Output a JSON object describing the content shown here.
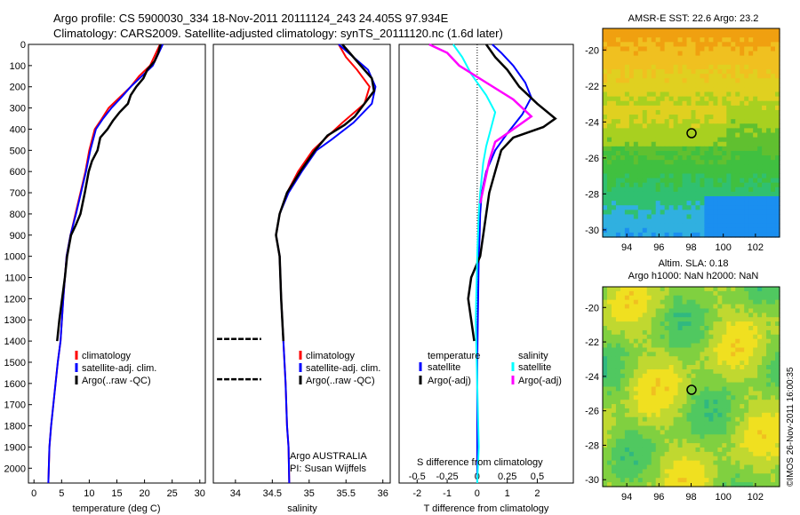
{
  "header": {
    "title_line1": "Argo profile: CS 5900030_334 18-Nov-2011 20111124_243 24.405S 97.934E",
    "title_line2": "Climatology: CARS2009. Satellite-adjusted climatology: synTS_20111120.nc (1.6d later)"
  },
  "colors": {
    "climatology": "#ff0000",
    "satellite": "#0000ff",
    "argo": "#000000",
    "salinity_satellite": "#00ffff",
    "salinity_argo": "#ff00ff"
  },
  "chart_data": [
    {
      "type": "line",
      "name": "temperature-profile",
      "xlabel": "temperature (deg C)",
      "ylabel": "",
      "xlim": [
        -1,
        31
      ],
      "ylim": [
        2070,
        0
      ],
      "xticks": [
        0,
        5,
        10,
        15,
        20,
        25,
        30
      ],
      "yticks": [
        0,
        100,
        200,
        300,
        400,
        500,
        600,
        700,
        800,
        900,
        1000,
        1100,
        1200,
        1300,
        1400,
        1500,
        1600,
        1700,
        1800,
        1900,
        2000
      ],
      "legend": [
        "climatology",
        "satellite-adj. clim.",
        "Argo(..raw -QC)"
      ],
      "series": [
        {
          "key": "climatology",
          "x": [
            22.8,
            21,
            19,
            17.5,
            15.5,
            13.5,
            12.3,
            11,
            10,
            9.3,
            8.4,
            7.5,
            6.6,
            5.9,
            5.3,
            4.8,
            4.3,
            3.9,
            3.5,
            3.1,
            2.8,
            2.6
          ],
          "y": [
            0,
            100,
            150,
            200,
            250,
            300,
            350,
            400,
            500,
            600,
            700,
            800,
            900,
            1000,
            1200,
            1400,
            1500,
            1600,
            1700,
            1800,
            1900,
            2070
          ]
        },
        {
          "key": "satellite",
          "x": [
            23.3,
            21.5,
            19.5,
            17.5,
            15.8,
            14,
            12.5,
            11.2,
            10.2,
            9.4,
            8.5,
            7.6,
            6.6,
            5.9,
            5.3,
            4.8,
            4.3,
            3.9,
            3.5,
            3.1,
            2.8,
            2.6
          ],
          "y": [
            0,
            100,
            150,
            200,
            250,
            300,
            350,
            400,
            500,
            600,
            700,
            800,
            900,
            1000,
            1200,
            1400,
            1500,
            1600,
            1700,
            1800,
            1900,
            2070
          ]
        },
        {
          "key": "argo",
          "x": [
            22.9,
            22.5,
            21.8,
            20.5,
            19.8,
            18.5,
            17.5,
            17,
            15.5,
            14.3,
            13.3,
            12,
            11.5,
            10.5,
            9.9,
            9.2,
            8.4,
            7.6,
            6.7,
            6,
            5.6,
            5.1,
            4.6,
            4.2
          ],
          "y": [
            0,
            40,
            80,
            120,
            160,
            200,
            240,
            280,
            320,
            360,
            400,
            440,
            500,
            550,
            600,
            700,
            800,
            850,
            900,
            1000,
            1100,
            1200,
            1300,
            1400
          ]
        }
      ]
    },
    {
      "type": "line",
      "name": "salinity-profile",
      "xlabel": "salinity",
      "ylabel": "",
      "xlim": [
        33.7,
        36.1
      ],
      "ylim": [
        2070,
        0
      ],
      "xticks": [
        34,
        34.5,
        35,
        35.5,
        36
      ],
      "xtick_labels": [
        "34",
        "34.5",
        "35",
        "35.5",
        "36"
      ],
      "legend": [
        "climatology",
        "satellite-adj. clim.",
        "Argo(..raw -QC)"
      ],
      "annotations": [
        "Argo AUSTRALIA",
        "PI: Susan Wijffels"
      ],
      "series": [
        {
          "key": "climatology",
          "x": [
            35.4,
            35.5,
            35.65,
            35.82,
            35.75,
            35.45,
            35.2,
            35.05,
            34.85,
            34.7,
            34.6,
            34.55,
            34.6,
            34.62,
            34.65,
            34.68,
            34.7,
            34.72,
            34.73
          ],
          "y": [
            0,
            60,
            120,
            200,
            280,
            370,
            450,
            500,
            600,
            700,
            800,
            900,
            1000,
            1200,
            1400,
            1600,
            1800,
            1900,
            2070
          ]
        },
        {
          "key": "satellite",
          "x": [
            35.4,
            35.6,
            35.8,
            35.9,
            35.85,
            35.6,
            35.3,
            35.1,
            34.9,
            34.72,
            34.6,
            34.55,
            34.6,
            34.62,
            34.65,
            34.68,
            34.7,
            34.72,
            34.73
          ],
          "y": [
            0,
            60,
            120,
            200,
            280,
            370,
            450,
            500,
            600,
            700,
            800,
            900,
            1000,
            1200,
            1400,
            1600,
            1800,
            1900,
            2070
          ]
        },
        {
          "key": "argo",
          "x": [
            35.45,
            35.55,
            35.7,
            35.85,
            35.88,
            35.75,
            35.62,
            35.48,
            35.25,
            35.08,
            34.88,
            34.7,
            34.6,
            34.55,
            34.6,
            34.62,
            34.65
          ],
          "y": [
            0,
            40,
            100,
            160,
            220,
            280,
            340,
            380,
            430,
            500,
            600,
            700,
            800,
            900,
            1000,
            1200,
            1400
          ]
        },
        {
          "key": "argo_flag_1",
          "x": [
            33.75,
            34.35
          ],
          "y": [
            1390,
            1390
          ]
        },
        {
          "key": "argo_flag_2",
          "x": [
            33.75,
            34.35
          ],
          "y": [
            1580,
            1580
          ]
        }
      ]
    },
    {
      "type": "line",
      "name": "difference-profile",
      "xlabel": "T difference from climatology",
      "x2label": "S difference from climatology",
      "xlim": [
        -2.6,
        3.2
      ],
      "ylim": [
        2070,
        0
      ],
      "xticks": [
        -2,
        -1,
        0,
        1,
        2
      ],
      "xtick_labels": [
        "-2",
        "-1",
        "0",
        "1",
        "2"
      ],
      "x2ticks": [
        -0.5,
        -0.25,
        0,
        0.25,
        0.5
      ],
      "x2tick_labels": [
        "-0.5",
        "-0.25",
        "0",
        "0.25",
        "0.5"
      ],
      "legend_headers": [
        "temperature",
        "salinity"
      ],
      "legend": [
        "satellite",
        "Argo(-adj)",
        "satellite",
        "Argo(-adj)"
      ],
      "series": [
        {
          "key": "t_satellite",
          "x": [
            0.5,
            0.8,
            1.2,
            1.6,
            1.8,
            1.5,
            1.0,
            0.6,
            0.3,
            0.15,
            0.1,
            0.08,
            0.05,
            0.03,
            0.0,
            0.0,
            0.0
          ],
          "y": [
            0,
            40,
            100,
            180,
            250,
            330,
            420,
            500,
            600,
            700,
            800,
            900,
            1000,
            1200,
            1500,
            1800,
            2070
          ]
        },
        {
          "key": "t_argo",
          "x": [
            0.3,
            0.6,
            1.0,
            1.4,
            2.0,
            2.6,
            2.2,
            1.2,
            0.8,
            0.6,
            0.4,
            0.3,
            0.2,
            0.1,
            -0.2,
            -0.3,
            -0.2,
            -0.1
          ],
          "y": [
            0,
            60,
            120,
            200,
            280,
            350,
            390,
            440,
            500,
            600,
            700,
            800,
            900,
            1000,
            1100,
            1200,
            1300,
            1400
          ]
        },
        {
          "key": "s_satellite",
          "x": [
            -0.8,
            -0.5,
            -0.2,
            0.3,
            0.6,
            0.45,
            0.3,
            0.2,
            0.1,
            0.05,
            0.0,
            -0.05,
            0.0,
            0.05,
            0.0
          ],
          "y": [
            0,
            60,
            140,
            240,
            320,
            400,
            480,
            560,
            700,
            800,
            1000,
            1300,
            1600,
            1900,
            2070
          ]
        },
        {
          "key": "s_argo",
          "x": [
            -1.6,
            -1.0,
            -0.6,
            0.3,
            1.2,
            1.8,
            1.2,
            0.6,
            0.4,
            0.25,
            0.1
          ],
          "y": [
            0,
            40,
            100,
            180,
            260,
            340,
            400,
            460,
            550,
            650,
            750
          ]
        }
      ]
    }
  ],
  "map1": {
    "title": "AMSR-E SST: 22.6 Argo: 23.2",
    "xticks": [
      "94",
      "96",
      "98",
      "100",
      "102"
    ],
    "yticks": [
      "-20",
      "-22",
      "-24",
      "-26",
      "-28",
      "-30"
    ],
    "marker": {
      "lon": 97.934,
      "lat": -24.405
    }
  },
  "map2": {
    "title_line1": "Altim. SLA: 0.18",
    "title_line2": "Argo h1000: NaN h2000: NaN",
    "xticks": [
      "94",
      "96",
      "98",
      "100",
      "102"
    ],
    "yticks": [
      "-20",
      "-22",
      "-24",
      "-26",
      "-28",
      "-30"
    ],
    "marker": {
      "lon": 97.934,
      "lat": -24.405
    }
  },
  "footer": {
    "stamp": "©IMOS 26-Nov-2011 16:00:35"
  }
}
